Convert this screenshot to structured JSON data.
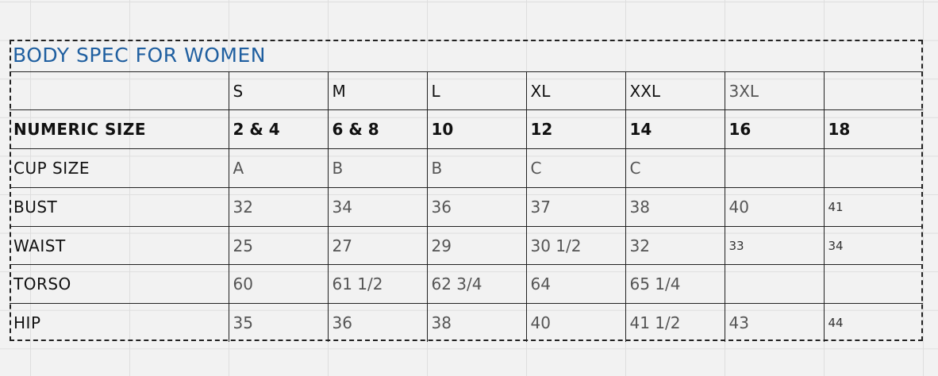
{
  "title": "BODY SPEC FOR WOMEN",
  "header": [
    "",
    "S",
    "M",
    "L",
    "XL",
    "XXL",
    "3XL",
    ""
  ],
  "rows": [
    {
      "label": "NUMERIC SIZE",
      "cells": [
        "2 & 4",
        "6 & 8",
        "10",
        "12",
        "14",
        "16",
        "18"
      ]
    },
    {
      "label": "CUP SIZE",
      "cells": [
        "A",
        "B",
        "B",
        "C",
        "C",
        "",
        ""
      ]
    },
    {
      "label": "BUST",
      "cells": [
        "32",
        "34",
        "36",
        "37",
        "38",
        "40",
        "41"
      ]
    },
    {
      "label": "WAIST",
      "cells": [
        "25",
        "27",
        "29",
        "30 1/2",
        "32",
        "33",
        "34"
      ]
    },
    {
      "label": "TORSO",
      "cells": [
        "60",
        "61 1/2",
        "62 3/4",
        "64",
        "65 1/4",
        "",
        ""
      ]
    },
    {
      "label": "HIP",
      "cells": [
        "35",
        "36",
        "38",
        "40",
        "41 1/2",
        "43",
        "44"
      ]
    }
  ],
  "colors": {
    "title": "#1f5fa0",
    "background": "#f2f2f2"
  }
}
